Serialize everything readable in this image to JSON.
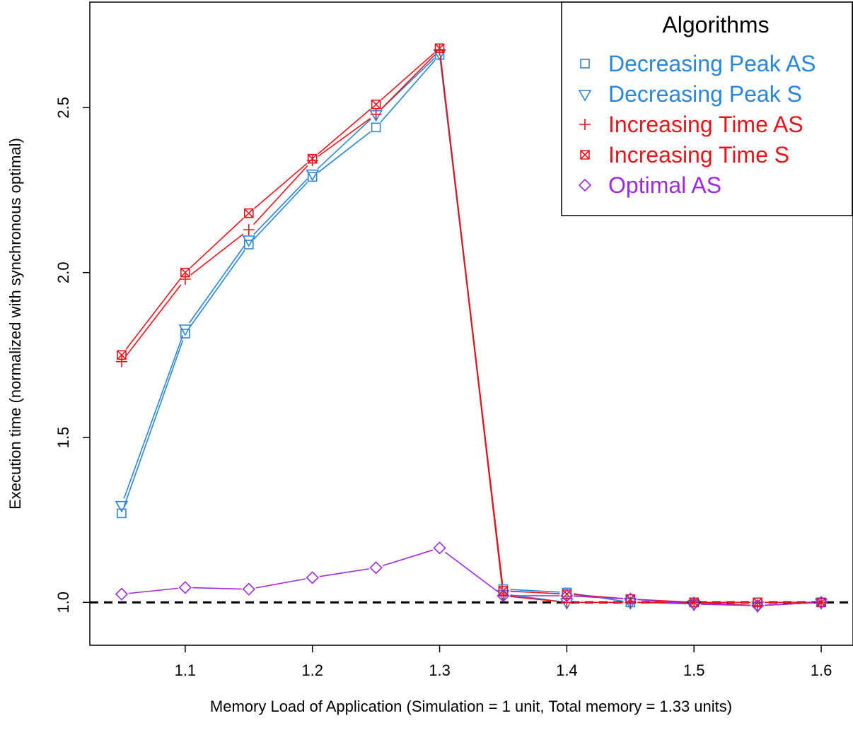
{
  "chart_data": {
    "type": "line",
    "title": "",
    "xlabel": "Memory Load of Application (Simulation = 1 unit, Total memory = 1.33 units)",
    "ylabel": "Execution time (normalized with synchronous optimal)",
    "xlim": [
      1.025,
      1.625
    ],
    "ylim": [
      0.87,
      2.82
    ],
    "x_ticks": [
      1.1,
      1.2,
      1.3,
      1.4,
      1.5,
      1.6
    ],
    "x_tick_labels": [
      "1.1",
      "1.2",
      "1.3",
      "1.4",
      "1.5",
      "1.6"
    ],
    "y_ticks": [
      1.0,
      1.5,
      2.0,
      2.5
    ],
    "y_tick_labels": [
      "1.0",
      "1.5",
      "2.0",
      "2.5"
    ],
    "grid": false,
    "reference_line": {
      "y": 1.0,
      "style": "dashed",
      "color": "#000000"
    },
    "x": [
      1.05,
      1.1,
      1.15,
      1.2,
      1.25,
      1.3,
      1.35,
      1.4,
      1.45,
      1.5,
      1.55,
      1.6
    ],
    "legend": {
      "title": "Algorithms",
      "position": "top-right"
    },
    "series": [
      {
        "name": "Decreasing Peak AS",
        "marker": "square",
        "color": "#2a86d9",
        "values": [
          1.27,
          1.815,
          2.085,
          2.29,
          2.44,
          2.66,
          1.04,
          1.03,
          1.0,
          1.0,
          1.0,
          1.0
        ]
      },
      {
        "name": "Decreasing Peak S",
        "marker": "triangle-down",
        "color": "#2a86d9",
        "values": [
          1.295,
          1.83,
          2.1,
          2.3,
          2.48,
          2.665,
          1.025,
          1.0,
          1.0,
          0.995,
          0.99,
          1.0
        ]
      },
      {
        "name": "Increasing Time AS",
        "marker": "plus",
        "color": "#e8141c",
        "values": [
          1.73,
          1.98,
          2.13,
          2.34,
          2.48,
          2.675,
          1.02,
          1.0,
          1.0,
          1.0,
          0.99,
          1.0
        ]
      },
      {
        "name": "Increasing Time S",
        "marker": "box-x",
        "color": "#e8141c",
        "values": [
          1.75,
          2.0,
          2.18,
          2.345,
          2.51,
          2.68,
          1.035,
          1.025,
          1.01,
          1.0,
          1.0,
          1.0
        ]
      },
      {
        "name": "Optimal AS",
        "marker": "diamond",
        "color": "#a129e0",
        "values": [
          1.025,
          1.045,
          1.04,
          1.075,
          1.105,
          1.165,
          1.02,
          1.02,
          1.01,
          0.995,
          0.99,
          1.0
        ]
      }
    ]
  }
}
